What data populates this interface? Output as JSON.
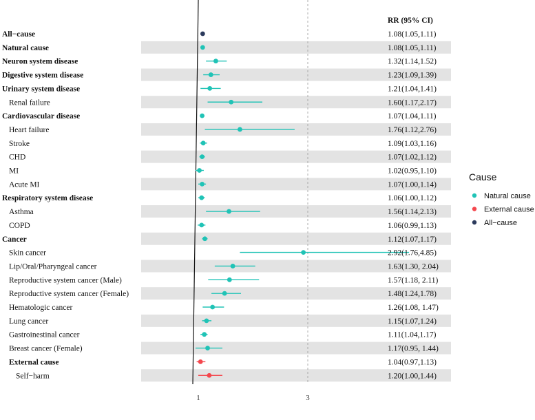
{
  "chart_data": {
    "type": "forest",
    "header": "RR (95% CI)",
    "x_ticks": [
      1,
      3
    ],
    "xlim": [
      0.94,
      4.6
    ],
    "reference_line": 1,
    "dashed_line": 3,
    "legend": {
      "title": "Cause",
      "entries": [
        {
          "name": "Natural cause",
          "color": "#20c3b6"
        },
        {
          "name": "External cause",
          "color": "#f4474d"
        },
        {
          "name": "All−cause",
          "color": "#2b3a5c"
        }
      ]
    },
    "rows": [
      {
        "label": "All−cause",
        "bold": true,
        "indent": 0,
        "rr": 1.08,
        "lo": 1.05,
        "hi": 1.11,
        "ci_text": "1.08(1.05,1.11)",
        "cause": "All−cause",
        "shade": false
      },
      {
        "label": "Natural cause",
        "bold": true,
        "indent": 0,
        "rr": 1.08,
        "lo": 1.05,
        "hi": 1.11,
        "ci_text": "1.08(1.05,1.11)",
        "cause": "Natural cause",
        "shade": true
      },
      {
        "label": "Neuron system disease",
        "bold": true,
        "indent": 0,
        "rr": 1.32,
        "lo": 1.14,
        "hi": 1.52,
        "ci_text": "1.32(1.14,1.52)",
        "cause": "Natural cause",
        "shade": false
      },
      {
        "label": "Digestive system disease",
        "bold": true,
        "indent": 0,
        "rr": 1.23,
        "lo": 1.09,
        "hi": 1.39,
        "ci_text": "1.23(1.09,1.39)",
        "cause": "Natural cause",
        "shade": true
      },
      {
        "label": "Urinary system disease",
        "bold": true,
        "indent": 0,
        "rr": 1.21,
        "lo": 1.04,
        "hi": 1.41,
        "ci_text": "1.21(1.04,1.41)",
        "cause": "Natural cause",
        "shade": false
      },
      {
        "label": "Renal failure",
        "bold": false,
        "indent": 1,
        "rr": 1.6,
        "lo": 1.17,
        "hi": 2.17,
        "ci_text": "1.60(1.17,2.17)",
        "cause": "Natural cause",
        "shade": true
      },
      {
        "label": "Cardiovascular disease",
        "bold": true,
        "indent": 0,
        "rr": 1.07,
        "lo": 1.04,
        "hi": 1.11,
        "ci_text": "1.07(1.04,1.11)",
        "cause": "Natural cause",
        "shade": false
      },
      {
        "label": "Heart failure",
        "bold": false,
        "indent": 1,
        "rr": 1.76,
        "lo": 1.12,
        "hi": 2.76,
        "ci_text": "1.76(1.12,2.76)",
        "cause": "Natural cause",
        "shade": true
      },
      {
        "label": "Stroke",
        "bold": false,
        "indent": 1,
        "rr": 1.09,
        "lo": 1.03,
        "hi": 1.16,
        "ci_text": "1.09(1.03,1.16)",
        "cause": "Natural cause",
        "shade": false
      },
      {
        "label": "CHD",
        "bold": false,
        "indent": 1,
        "rr": 1.07,
        "lo": 1.02,
        "hi": 1.12,
        "ci_text": "1.07(1.02,1.12)",
        "cause": "Natural cause",
        "shade": true
      },
      {
        "label": "MI",
        "bold": false,
        "indent": 1,
        "rr": 1.02,
        "lo": 0.95,
        "hi": 1.1,
        "ci_text": "1.02(0.95,1.10)",
        "cause": "Natural cause",
        "shade": false
      },
      {
        "label": "Acute MI",
        "bold": false,
        "indent": 1,
        "rr": 1.07,
        "lo": 1.0,
        "hi": 1.14,
        "ci_text": "1.07(1.00,1.14)",
        "cause": "Natural cause",
        "shade": true
      },
      {
        "label": "Respiratory system disease",
        "bold": true,
        "indent": 0,
        "rr": 1.06,
        "lo": 1.0,
        "hi": 1.12,
        "ci_text": "1.06(1.00,1.12)",
        "cause": "Natural cause",
        "shade": false
      },
      {
        "label": "Asthma",
        "bold": false,
        "indent": 1,
        "rr": 1.56,
        "lo": 1.14,
        "hi": 2.13,
        "ci_text": "1.56(1.14,2.13)",
        "cause": "Natural cause",
        "shade": true
      },
      {
        "label": "COPD",
        "bold": false,
        "indent": 1,
        "rr": 1.06,
        "lo": 0.99,
        "hi": 1.13,
        "ci_text": "1.06(0.99,1.13)",
        "cause": "Natural cause",
        "shade": false
      },
      {
        "label": "Cancer",
        "bold": true,
        "indent": 0,
        "rr": 1.12,
        "lo": 1.07,
        "hi": 1.17,
        "ci_text": "1.12(1.07,1.17)",
        "cause": "Natural cause",
        "shade": true
      },
      {
        "label": "Skin cancer",
        "bold": false,
        "indent": 1,
        "rr": 2.92,
        "lo": 1.76,
        "hi": 4.85,
        "ci_text": "2.92(1.76,4.85)",
        "cause": "Natural cause",
        "shade": false
      },
      {
        "label": "Lip/Oral/Pharyngeal cancer",
        "bold": false,
        "indent": 1,
        "rr": 1.63,
        "lo": 1.3,
        "hi": 2.04,
        "ci_text": "1.63(1.30, 2.04)",
        "cause": "Natural cause",
        "shade": true
      },
      {
        "label": "Reproductive system cancer (Male)",
        "bold": false,
        "indent": 1,
        "rr": 1.57,
        "lo": 1.18,
        "hi": 2.11,
        "ci_text": "1.57(1.18, 2.11)",
        "cause": "Natural cause",
        "shade": false
      },
      {
        "label": "Reproductive system cancer (Female)",
        "bold": false,
        "indent": 1,
        "rr": 1.48,
        "lo": 1.24,
        "hi": 1.78,
        "ci_text": "1.48(1.24,1.78)",
        "cause": "Natural cause",
        "shade": true
      },
      {
        "label": "Hematologic cancer",
        "bold": false,
        "indent": 1,
        "rr": 1.26,
        "lo": 1.08,
        "hi": 1.47,
        "ci_text": "1.26(1.08, 1.47)",
        "cause": "Natural cause",
        "shade": false
      },
      {
        "label": "Lung cancer",
        "bold": false,
        "indent": 1,
        "rr": 1.15,
        "lo": 1.07,
        "hi": 1.24,
        "ci_text": "1.15(1.07,1.24)",
        "cause": "Natural cause",
        "shade": true
      },
      {
        "label": "Gastroinestinal cancer",
        "bold": false,
        "indent": 1,
        "rr": 1.11,
        "lo": 1.04,
        "hi": 1.17,
        "ci_text": "1.11(1.04,1.17)",
        "cause": "Natural cause",
        "shade": false
      },
      {
        "label": "Breast cancer (Female)",
        "bold": false,
        "indent": 1,
        "rr": 1.17,
        "lo": 0.95,
        "hi": 1.44,
        "ci_text": "1.17(0.95, 1.44)",
        "cause": "Natural cause",
        "shade": true
      },
      {
        "label": "External cause",
        "bold": true,
        "indent": 1,
        "rr": 1.04,
        "lo": 0.97,
        "hi": 1.13,
        "ci_text": "1.04(0.97,1.13)",
        "cause": "External cause",
        "shade": false
      },
      {
        "label": "Self−harm",
        "bold": false,
        "indent": 2,
        "rr": 1.2,
        "lo": 1.0,
        "hi": 1.44,
        "ci_text": "1.20(1.00,1.44)",
        "cause": "External cause",
        "shade": true
      }
    ]
  }
}
